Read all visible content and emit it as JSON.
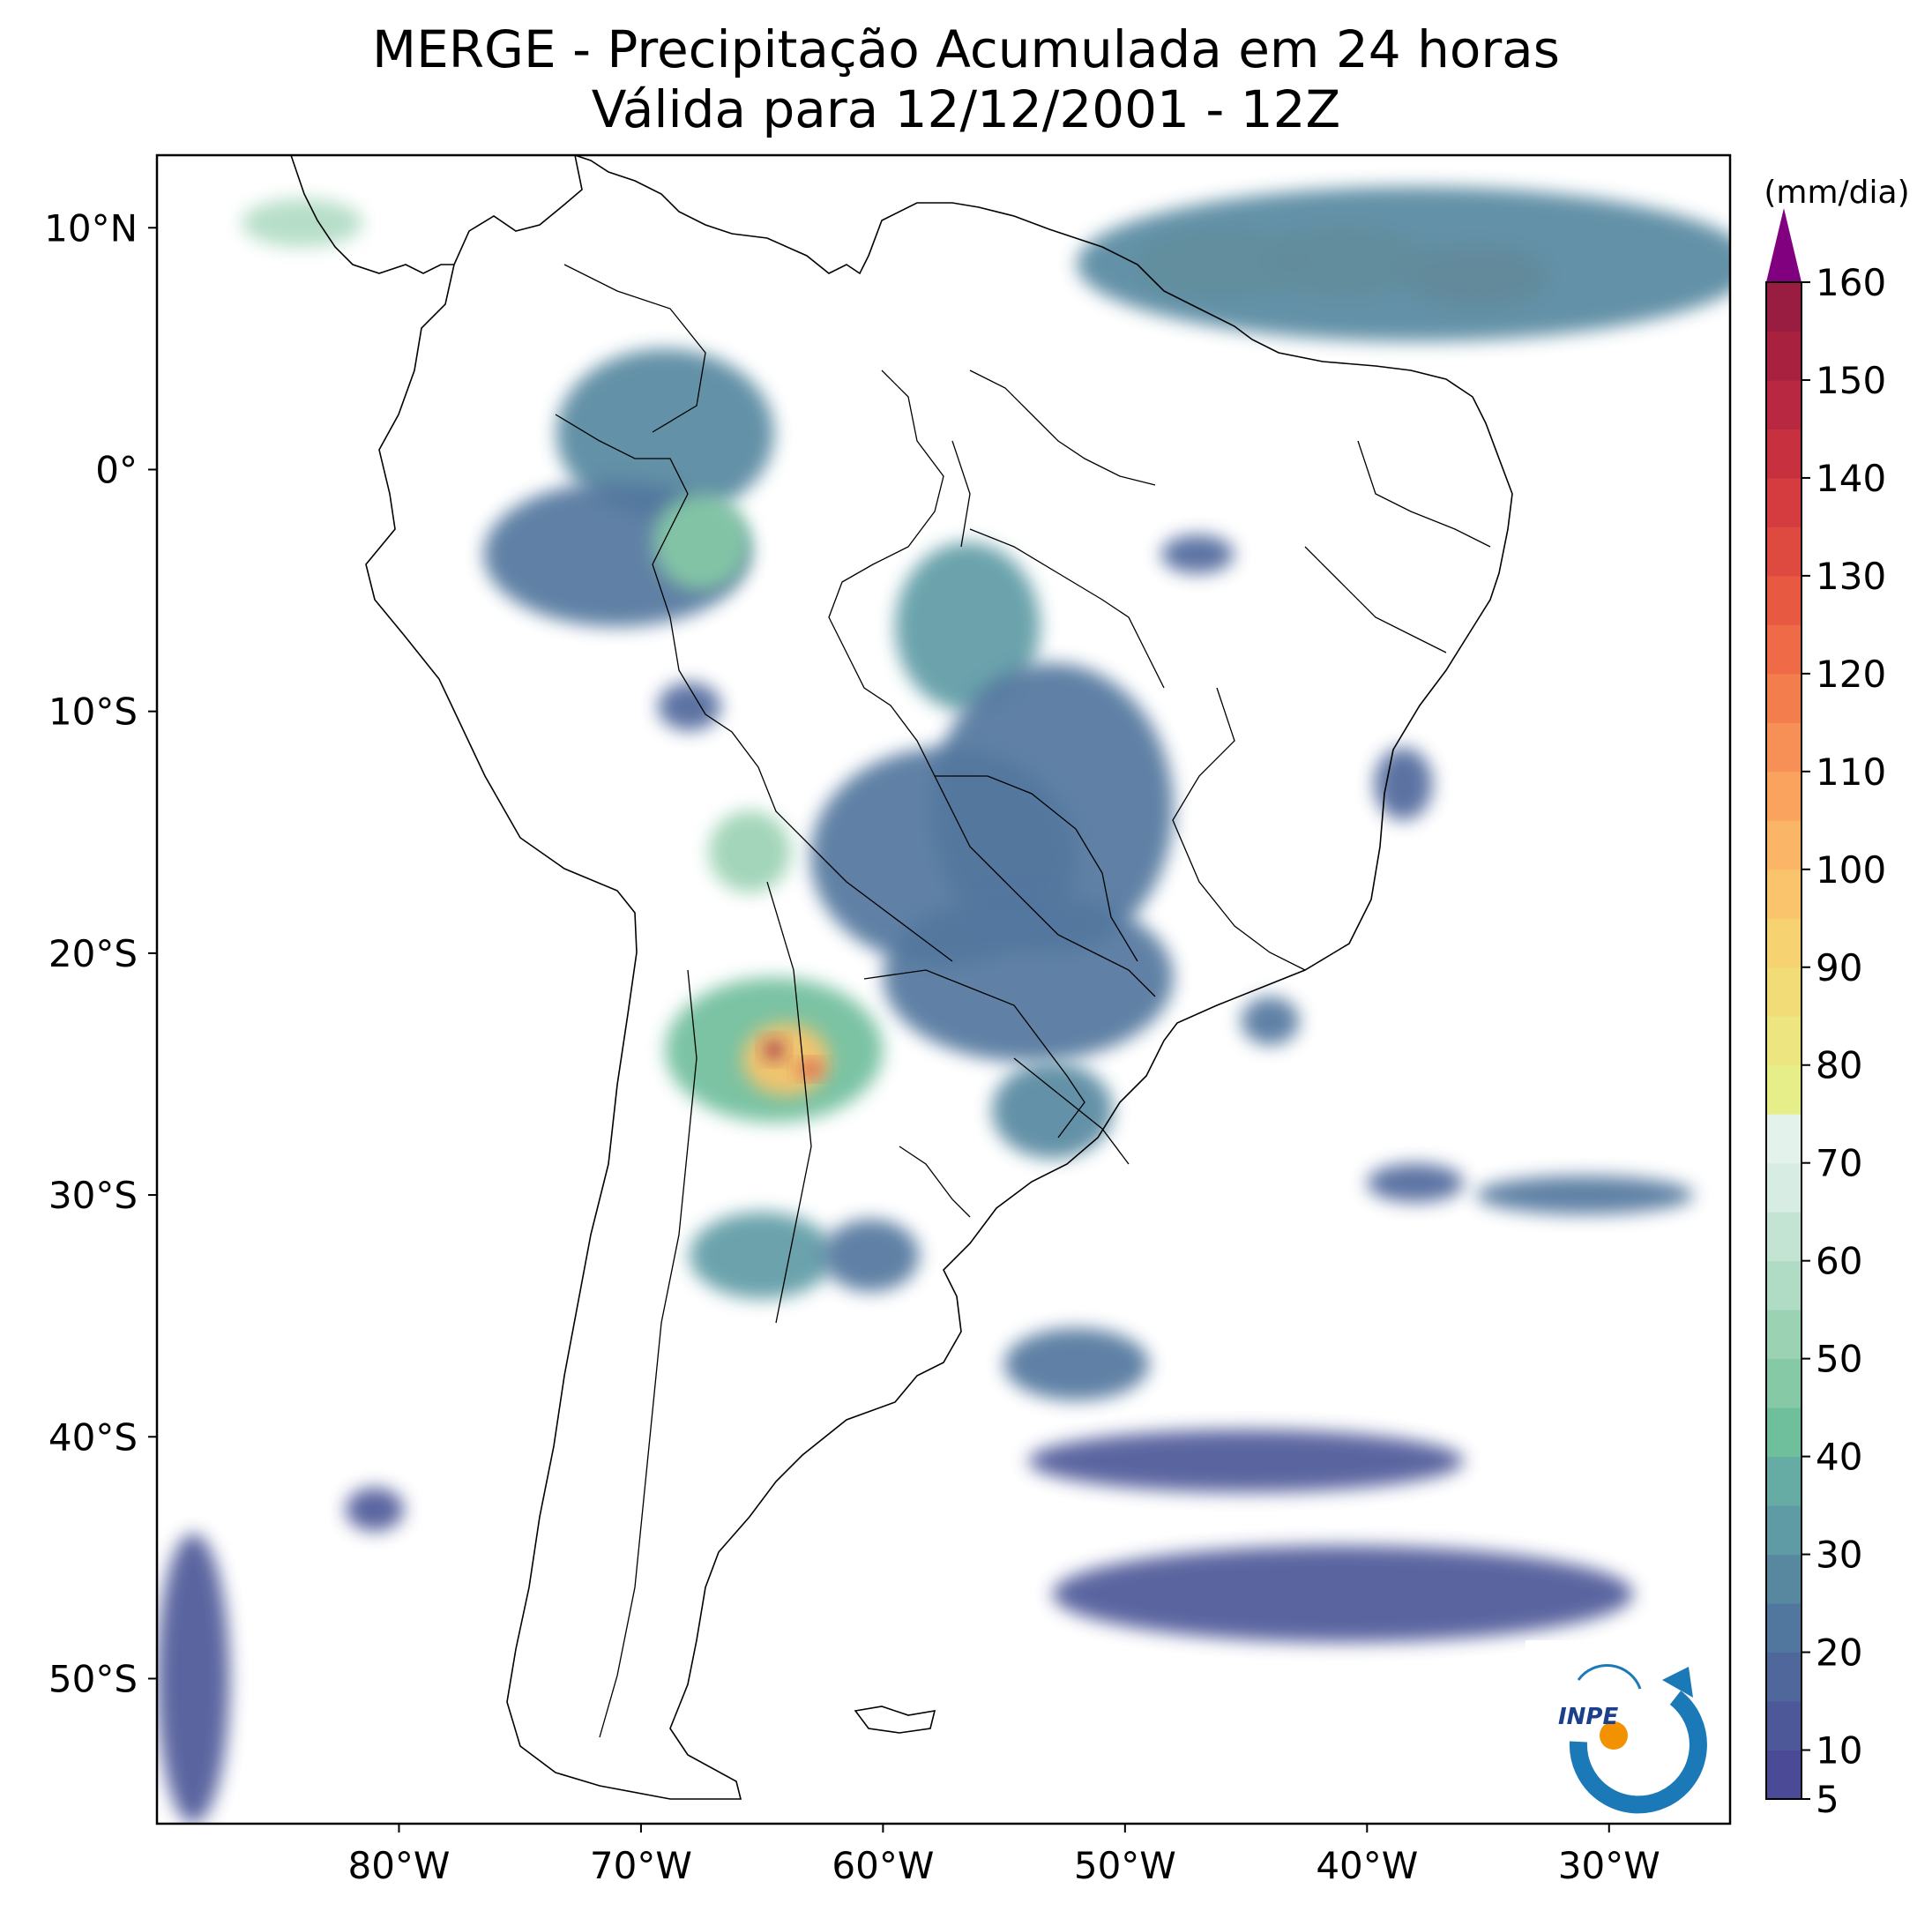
{
  "title": {
    "line1": "MERGE - Precipitação Acumulada em 24 horas",
    "line2": "Válida para 12/12/2001 - 12Z"
  },
  "map": {
    "lon_range": [
      -90,
      -25
    ],
    "lat_range": [
      -56,
      13
    ],
    "lon_ticks": [
      {
        "value": -80,
        "label": "80°W"
      },
      {
        "value": -70,
        "label": "70°W"
      },
      {
        "value": -60,
        "label": "60°W"
      },
      {
        "value": -50,
        "label": "50°W"
      },
      {
        "value": -40,
        "label": "40°W"
      },
      {
        "value": -30,
        "label": "30°W"
      }
    ],
    "lat_ticks": [
      {
        "value": 10,
        "label": "10°N"
      },
      {
        "value": 0,
        "label": "0°"
      },
      {
        "value": -10,
        "label": "10°S"
      },
      {
        "value": -20,
        "label": "20°S"
      },
      {
        "value": -30,
        "label": "30°S"
      },
      {
        "value": -40,
        "label": "40°S"
      },
      {
        "value": -50,
        "label": "50°S"
      }
    ]
  },
  "colorbar": {
    "unit": "(mm/dia)",
    "min": 5,
    "max": 160,
    "extend": "max",
    "over_color": "#800080",
    "tick_values": [
      5,
      10,
      20,
      30,
      40,
      50,
      60,
      70,
      80,
      90,
      100,
      110,
      120,
      130,
      140,
      150,
      160
    ],
    "tick_labels": [
      "5",
      "10",
      "20",
      "30",
      "40",
      "50",
      "60",
      "70",
      "80",
      "90",
      "100",
      "110",
      "120",
      "130",
      "140",
      "150",
      "160"
    ],
    "colors": [
      "#4a4a96",
      "#4d5898",
      "#4f679b",
      "#52779e",
      "#5788a0",
      "#5e9ba5",
      "#66aca4",
      "#6fbe9c",
      "#85c9a6",
      "#9bd2b4",
      "#b0dbc4",
      "#c4e4d3",
      "#d7ede4",
      "#e4f2ec",
      "#e6ee8a",
      "#ece580",
      "#f2dc78",
      "#f6d270",
      "#f9c46b",
      "#fab566",
      "#f9a35f",
      "#f79056",
      "#f47d4e",
      "#ef6a47",
      "#e85942",
      "#df4a40",
      "#d43c40",
      "#c7303f",
      "#b82840",
      "#a82240",
      "#981d40"
    ]
  },
  "logo": {
    "text": "INPE"
  },
  "rain_cells": [
    {
      "lon": -46,
      "lat": 8.5,
      "rx": 3.5,
      "ry": 1.4,
      "level": 16
    },
    {
      "lon": -41,
      "lat": 8.6,
      "rx": 3.5,
      "ry": 1.4,
      "level": 18
    },
    {
      "lon": -35.5,
      "lat": 8.0,
      "rx": 3.0,
      "ry": 1.3,
      "level": 20
    },
    {
      "lon": -38,
      "lat": 8.5,
      "rx": 14,
      "ry": 3.2,
      "level": 4
    },
    {
      "lon": -84,
      "lat": 10.2,
      "rx": 2.5,
      "ry": 1.0,
      "level": 10
    },
    {
      "lon": -69,
      "lat": 1.5,
      "rx": 4.5,
      "ry": 3.5,
      "level": 4
    },
    {
      "lon": -71,
      "lat": -3.5,
      "rx": 5.5,
      "ry": 3.0,
      "level": 3
    },
    {
      "lon": -67.5,
      "lat": -3.0,
      "rx": 2.0,
      "ry": 2.0,
      "level": 8
    },
    {
      "lon": -56.5,
      "lat": -6.5,
      "rx": 3.0,
      "ry": 3.5,
      "level": 5
    },
    {
      "lon": -68,
      "lat": -9.8,
      "rx": 1.3,
      "ry": 1.0,
      "level": 2
    },
    {
      "lon": -53,
      "lat": -14,
      "rx": 5.0,
      "ry": 6.0,
      "level": 3
    },
    {
      "lon": -57.5,
      "lat": -16.0,
      "rx": 5.5,
      "ry": 4.5,
      "level": 3
    },
    {
      "lon": -65.5,
      "lat": -15.8,
      "rx": 1.7,
      "ry": 1.7,
      "level": 9
    },
    {
      "lon": -54,
      "lat": -21,
      "rx": 6.0,
      "ry": 3.5,
      "level": 3
    },
    {
      "lon": -64.5,
      "lat": -24.0,
      "rx": 4.5,
      "ry": 3.0,
      "level": 7
    },
    {
      "lon": -64.0,
      "lat": -24.4,
      "rx": 1.8,
      "ry": 1.5,
      "level": 18
    },
    {
      "lon": -64.5,
      "lat": -24.0,
      "rx": 0.4,
      "ry": 0.4,
      "level": 30
    },
    {
      "lon": -63.0,
      "lat": -24.8,
      "rx": 0.5,
      "ry": 0.3,
      "level": 26
    },
    {
      "lon": -53,
      "lat": -26.5,
      "rx": 2.5,
      "ry": 2.0,
      "level": 4
    },
    {
      "lon": -65,
      "lat": -32.5,
      "rx": 3.0,
      "ry": 1.8,
      "level": 5
    },
    {
      "lon": -60.5,
      "lat": -32.5,
      "rx": 2.0,
      "ry": 1.5,
      "level": 3
    },
    {
      "lon": -31,
      "lat": -30,
      "rx": 4.5,
      "ry": 0.8,
      "level": 3
    },
    {
      "lon": -38,
      "lat": -29.5,
      "rx": 2.0,
      "ry": 0.8,
      "level": 2
    },
    {
      "lon": -52,
      "lat": -37,
      "rx": 3.0,
      "ry": 1.5,
      "level": 3
    },
    {
      "lon": -45,
      "lat": -41,
      "rx": 9.0,
      "ry": 1.3,
      "level": 1
    },
    {
      "lon": -41,
      "lat": -46.5,
      "rx": 12,
      "ry": 2.0,
      "level": 1
    },
    {
      "lon": -88.5,
      "lat": -50,
      "rx": 1.5,
      "ry": 6,
      "level": 1
    },
    {
      "lon": -38.5,
      "lat": -13,
      "rx": 1.2,
      "ry": 1.5,
      "level": 2
    },
    {
      "lon": -47,
      "lat": -3.5,
      "rx": 1.5,
      "ry": 0.8,
      "level": 2
    },
    {
      "lon": -44,
      "lat": -22.8,
      "rx": 1.2,
      "ry": 1.0,
      "level": 3
    },
    {
      "lon": -81,
      "lat": -43,
      "rx": 1.2,
      "ry": 0.9,
      "level": 1
    }
  ]
}
